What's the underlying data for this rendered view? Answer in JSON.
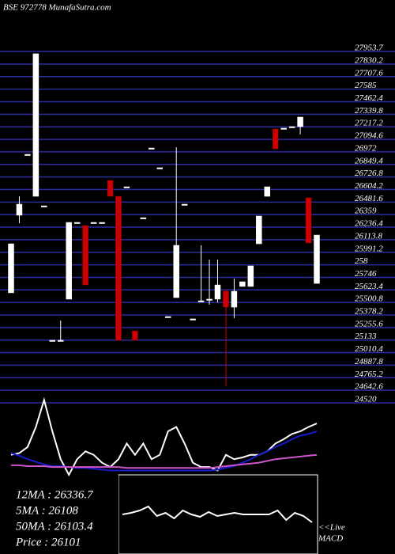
{
  "title": "BSE 972778 MunafaSutra.com",
  "chart_data": [
    {
      "type": "candlestick",
      "open": [
        25564,
        26322,
        26917,
        26507,
        26414,
        25100,
        25100,
        25502,
        26252,
        26221,
        26252,
        26252,
        26662,
        26507,
        26600,
        25192,
        26298,
        26979,
        26786,
        25332,
        25517,
        26430,
        25309,
        25486,
        25502,
        25502,
        25579,
        25424,
        25626,
        25626,
        26043,
        26507,
        27165,
        27173,
        27188,
        27188,
        26492,
        25656
      ],
      "high": [
        26043,
        26507,
        26917,
        27900,
        26414,
        25100,
        25293,
        26252,
        26252,
        26221,
        26252,
        26252,
        26662,
        26507,
        26600,
        25192,
        26298,
        26979,
        26786,
        25332,
        26987,
        26430,
        25309,
        26028,
        25889,
        25889,
        25595,
        25703,
        25672,
        25827,
        26314,
        26600,
        27165,
        27173,
        27188,
        27281,
        26492,
        26128
      ],
      "low": [
        25564,
        26244,
        26917,
        26507,
        26414,
        25100,
        25100,
        25502,
        26252,
        25641,
        26252,
        26252,
        26507,
        25100,
        26600,
        25100,
        26298,
        26979,
        26786,
        25332,
        25517,
        26430,
        25309,
        25486,
        25448,
        25471,
        24651,
        25316,
        25626,
        25626,
        26043,
        26507,
        26971,
        27173,
        27188,
        27111,
        26051,
        25656
      ],
      "close": [
        26043,
        26430,
        26917,
        27900,
        26414,
        25100,
        25100,
        26252,
        26252,
        25641,
        26252,
        26252,
        26507,
        25100,
        26600,
        25100,
        26298,
        26979,
        26786,
        25332,
        26028,
        26430,
        25309,
        25486,
        25502,
        25641,
        25424,
        25579,
        25672,
        25827,
        26314,
        26600,
        26971,
        27173,
        27188,
        27281,
        26051,
        26128
      ],
      "up_color": "#ffffff",
      "down_color": "#cc0000",
      "ylim": [
        24481,
        28000
      ],
      "yticks": [
        27953.7,
        27830.2,
        27707.6,
        27585,
        27462.4,
        27339.8,
        27217.2,
        27094.6,
        26972,
        26849.4,
        26726.8,
        26604.2,
        26481.6,
        26359,
        26236.4,
        26113.8,
        25991.2,
        {
          "value": 25868.6,
          "label": "258"
        },
        25746,
        25623.4,
        25500.8,
        25378.2,
        25255.6,
        25133,
        25010.4,
        24887.8,
        24765.2,
        24642.6,
        24520
      ],
      "grid": true,
      "grid_color": "#2b2ba0"
    },
    {
      "type": "line",
      "ylim": [
        0,
        100
      ],
      "series": [
        {
          "color": "#ffffff",
          "values": [
            23,
            25,
            32,
            55,
            86,
            50,
            18,
            0,
            18,
            27,
            23,
            14,
            9,
            18,
            36,
            23,
            36,
            18,
            23,
            50,
            55,
            36,
            14,
            9,
            9,
            5,
            23,
            18,
            20,
            23,
            23,
            27,
            36,
            41,
            47,
            50,
            55,
            59
          ]
        },
        {
          "color": "#1a1acc",
          "values": [
            25,
            22,
            18,
            15,
            12,
            10,
            10,
            9,
            8,
            8,
            7,
            6,
            5,
            5,
            5,
            5,
            5,
            5,
            5,
            5,
            5,
            5,
            5,
            5,
            5,
            6,
            8,
            10,
            14,
            18,
            23,
            27,
            32,
            36,
            41,
            45,
            47,
            50
          ]
        },
        {
          "color": "#cc55cc",
          "values": [
            11,
            11,
            10,
            10,
            10,
            9,
            9,
            9,
            9,
            9,
            9,
            9,
            9,
            9,
            8,
            8,
            8,
            8,
            8,
            8,
            8,
            8,
            8,
            8,
            8,
            9,
            10,
            11,
            12,
            13,
            14,
            16,
            18,
            19,
            20,
            21,
            22,
            23
          ]
        }
      ]
    },
    {
      "type": "line",
      "ylim": [
        0,
        100
      ],
      "series": [
        {
          "color": "#ffffff",
          "values": [
            50,
            52,
            55,
            60,
            48,
            52,
            45,
            55,
            50,
            47,
            53,
            48,
            50,
            52,
            50,
            50,
            50,
            50,
            55,
            43,
            52,
            48,
            40
          ]
        }
      ],
      "annotations": [
        "<<Live",
        "MACD"
      ]
    }
  ],
  "stats": [
    "12MA : 26336.7",
    "5MA : 26108",
    "50MA : 26103.4",
    "Price  : 26101"
  ]
}
